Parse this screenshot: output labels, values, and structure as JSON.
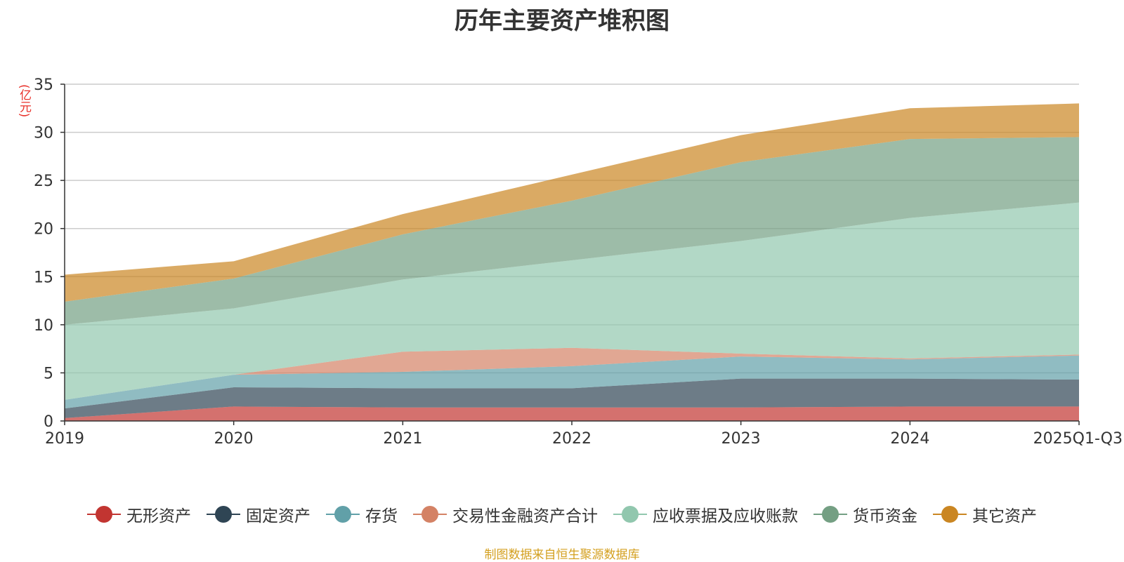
{
  "chart_data": {
    "type": "area",
    "stacked": true,
    "title": "历年主要资产堆积图",
    "ylabel": "(亿元)",
    "xlabel": "",
    "ylim": [
      0,
      35
    ],
    "yticks": [
      0,
      5,
      10,
      15,
      20,
      25,
      30,
      35
    ],
    "categories": [
      "2019",
      "2020",
      "2021",
      "2022",
      "2023",
      "2024",
      "2025Q1-Q3"
    ],
    "series": [
      {
        "name": "无形资产",
        "color": "#c23531",
        "values": [
          0.3,
          1.5,
          1.4,
          1.4,
          1.4,
          1.5,
          1.5
        ]
      },
      {
        "name": "固定资产",
        "color": "#2f4554",
        "values": [
          1.0,
          2.0,
          2.0,
          2.0,
          3.0,
          2.9,
          2.8
        ]
      },
      {
        "name": "存货",
        "color": "#61a0a8",
        "values": [
          0.9,
          1.3,
          1.7,
          2.3,
          2.3,
          2.0,
          2.5
        ]
      },
      {
        "name": "交易性金融资产合计",
        "color": "#d48265",
        "values": [
          0.0,
          0.0,
          2.1,
          1.9,
          0.3,
          0.1,
          0.1
        ]
      },
      {
        "name": "应收票据及应收账款",
        "color": "#91c7ae",
        "values": [
          7.8,
          6.9,
          7.5,
          9.1,
          11.7,
          14.6,
          15.8
        ]
      },
      {
        "name": "货币资金",
        "color": "#749f83",
        "values": [
          2.4,
          3.1,
          4.7,
          6.2,
          8.2,
          8.2,
          6.8
        ]
      },
      {
        "name": "其它资产",
        "color": "#ca8622",
        "values": [
          2.8,
          1.8,
          2.1,
          2.7,
          2.8,
          3.2,
          3.5
        ]
      }
    ],
    "legend_position": "bottom",
    "grid": true
  },
  "source_note": "制图数据来自恒生聚源数据库"
}
